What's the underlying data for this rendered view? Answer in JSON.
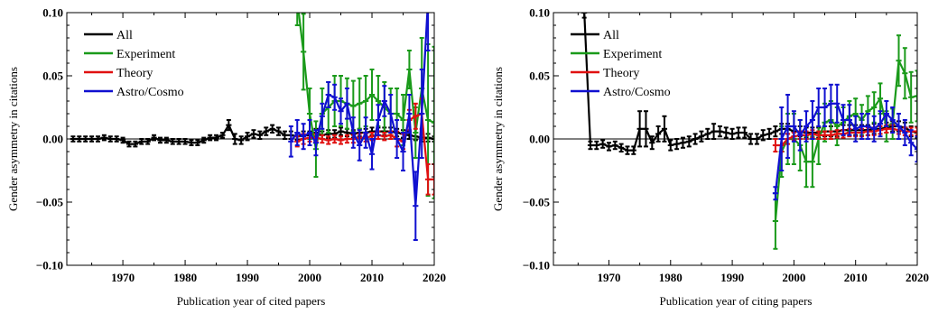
{
  "chart_data": [
    {
      "type": "line",
      "xlabel": "Publication year of cited papers",
      "ylabel": "Gender asymmetry in citations",
      "xlim": [
        1961,
        2020
      ],
      "ylim": [
        -0.1,
        0.1
      ],
      "x_ticks": [
        1970,
        1980,
        1990,
        2000,
        2010,
        2020
      ],
      "y_ticks": [
        -0.1,
        -0.05,
        0.0,
        0.05,
        0.1
      ],
      "y_tick_labels": [
        "−0.10",
        "−0.05",
        "0.00",
        "0.05",
        "0.10"
      ],
      "zero_line": true,
      "legend_position": "top-left",
      "series": [
        {
          "name": "All",
          "color": "#000000",
          "x": [
            1962,
            1963,
            1964,
            1965,
            1966,
            1967,
            1968,
            1969,
            1970,
            1971,
            1972,
            1973,
            1974,
            1975,
            1976,
            1977,
            1978,
            1979,
            1980,
            1981,
            1982,
            1983,
            1984,
            1985,
            1986,
            1987,
            1988,
            1989,
            1990,
            1991,
            1992,
            1993,
            1994,
            1995,
            1996,
            1997,
            1998,
            1999,
            2000,
            2001,
            2002,
            2003,
            2004,
            2005,
            2006,
            2007,
            2008,
            2009,
            2010,
            2011,
            2012,
            2013,
            2014,
            2015,
            2016,
            2017,
            2018,
            2019,
            2020
          ],
          "y": [
            0.0,
            0.0,
            0.0,
            0.0,
            0.0,
            0.001,
            0.0,
            0.0,
            -0.001,
            -0.004,
            -0.004,
            -0.002,
            -0.002,
            0.001,
            -0.001,
            -0.001,
            -0.002,
            -0.002,
            -0.002,
            -0.003,
            -0.003,
            -0.001,
            0.001,
            0.001,
            0.003,
            0.011,
            0.0,
            -0.001,
            0.002,
            0.004,
            0.003,
            0.006,
            0.008,
            0.006,
            0.003,
            0.003,
            0.002,
            0.003,
            0.003,
            0.005,
            0.003,
            0.004,
            0.004,
            0.006,
            0.005,
            0.004,
            0.005,
            0.005,
            0.006,
            0.006,
            0.006,
            0.006,
            0.005,
            0.004,
            0.003,
            0.002,
            0.001,
            0.001,
            0.0
          ],
          "yerr": [
            0.002,
            0.002,
            0.002,
            0.002,
            0.002,
            0.002,
            0.002,
            0.002,
            0.002,
            0.002,
            0.002,
            0.002,
            0.002,
            0.002,
            0.002,
            0.002,
            0.002,
            0.002,
            0.002,
            0.002,
            0.002,
            0.002,
            0.002,
            0.002,
            0.002,
            0.004,
            0.004,
            0.003,
            0.003,
            0.003,
            0.003,
            0.003,
            0.003,
            0.003,
            0.003,
            0.003,
            0.003,
            0.003,
            0.003,
            0.003,
            0.003,
            0.003,
            0.003,
            0.003,
            0.003,
            0.003,
            0.003,
            0.003,
            0.003,
            0.003,
            0.003,
            0.003,
            0.003,
            0.003,
            0.003,
            0.003,
            0.003,
            0.003,
            0.002
          ]
        },
        {
          "name": "Experiment",
          "color": "#1a9a1a",
          "x": [
            1998,
            1999,
            2000,
            2001,
            2002,
            2003,
            2004,
            2005,
            2006,
            2007,
            2008,
            2009,
            2010,
            2011,
            2012,
            2013,
            2014,
            2015,
            2016,
            2017,
            2018,
            2019,
            2020
          ],
          "y": [
            0.11,
            0.069,
            0.02,
            -0.008,
            0.02,
            0.025,
            0.03,
            0.03,
            0.028,
            0.026,
            0.028,
            0.03,
            0.035,
            0.03,
            0.025,
            0.02,
            0.02,
            0.015,
            0.055,
            0.005,
            0.04,
            0.015,
            0.013
          ],
          "yerr": [
            0.02,
            0.03,
            0.02,
            0.022,
            0.02,
            0.02,
            0.02,
            0.02,
            0.02,
            0.02,
            0.02,
            0.02,
            0.02,
            0.02,
            0.02,
            0.02,
            0.02,
            0.02,
            0.015,
            0.02,
            0.04,
            0.06,
            0.06
          ]
        },
        {
          "name": "Theory",
          "color": "#e01010",
          "x": [
            1998,
            1999,
            2000,
            2001,
            2002,
            2003,
            2004,
            2005,
            2006,
            2007,
            2008,
            2009,
            2010,
            2011,
            2012,
            2013,
            2014,
            2015,
            2016,
            2017,
            2018,
            2019,
            2020
          ],
          "y": [
            -0.002,
            0.0,
            0.001,
            0.001,
            0.0,
            -0.001,
            0.0,
            -0.001,
            0.0,
            0.0,
            0.001,
            0.001,
            0.002,
            0.003,
            0.002,
            0.003,
            0.0,
            -0.002,
            0.015,
            0.018,
            0.02,
            -0.032,
            -0.032
          ],
          "yerr": [
            0.004,
            0.004,
            0.003,
            0.003,
            0.003,
            0.003,
            0.003,
            0.003,
            0.003,
            0.003,
            0.003,
            0.003,
            0.003,
            0.003,
            0.003,
            0.003,
            0.006,
            0.006,
            0.008,
            0.01,
            0.012,
            0.012,
            0.012
          ]
        },
        {
          "name": "Astro/Cosmo",
          "color": "#1010d0",
          "x": [
            1997,
            1998,
            1999,
            2000,
            2001,
            2002,
            2003,
            2004,
            2005,
            2006,
            2007,
            2008,
            2009,
            2010,
            2011,
            2012,
            2013,
            2014,
            2015,
            2016,
            2017,
            2018,
            2019
          ],
          "y": [
            -0.002,
            0.005,
            0.002,
            0.005,
            -0.003,
            0.018,
            0.035,
            0.033,
            0.022,
            0.028,
            0.005,
            -0.005,
            0.005,
            -0.012,
            0.015,
            0.03,
            0.02,
            0.0,
            -0.01,
            0.02,
            -0.053,
            0.02,
            0.11
          ],
          "yerr": [
            0.012,
            0.01,
            0.01,
            0.01,
            0.01,
            0.01,
            0.01,
            0.01,
            0.01,
            0.012,
            0.012,
            0.012,
            0.012,
            0.012,
            0.012,
            0.012,
            0.015,
            0.015,
            0.015,
            0.015,
            0.027,
            0.035,
            0.04
          ]
        }
      ]
    },
    {
      "type": "line",
      "xlabel": "Publication year of citing papers",
      "ylabel": "Gender asymmetry in citations",
      "xlim": [
        1961,
        2020
      ],
      "ylim": [
        -0.1,
        0.1
      ],
      "x_ticks": [
        1970,
        1980,
        1990,
        2000,
        2010,
        2020
      ],
      "y_ticks": [
        -0.1,
        -0.05,
        0.0,
        0.05,
        0.1
      ],
      "y_tick_labels": [
        "−0.10",
        "−0.05",
        "0.00",
        "0.05",
        "0.10"
      ],
      "zero_line": true,
      "legend_position": "top-left",
      "series": [
        {
          "name": "All",
          "color": "#000000",
          "x": [
            1965,
            1966,
            1967,
            1968,
            1969,
            1970,
            1971,
            1972,
            1973,
            1974,
            1975,
            1976,
            1977,
            1978,
            1979,
            1980,
            1981,
            1982,
            1983,
            1984,
            1985,
            1986,
            1987,
            1988,
            1989,
            1990,
            1991,
            1992,
            1993,
            1994,
            1995,
            1996,
            1997,
            1998,
            1999,
            2000,
            2001,
            2002,
            2003,
            2004,
            2005,
            2006,
            2007,
            2008,
            2009,
            2010,
            2011,
            2012,
            2013,
            2014,
            2015,
            2016,
            2017,
            2018,
            2019,
            2020
          ],
          "y": [
            0.13,
            0.1,
            -0.005,
            -0.005,
            -0.004,
            -0.006,
            -0.005,
            -0.007,
            -0.009,
            -0.009,
            0.008,
            0.008,
            -0.003,
            0.004,
            0.008,
            -0.005,
            -0.004,
            -0.003,
            -0.002,
            0.0,
            0.002,
            0.004,
            0.006,
            0.006,
            0.005,
            0.004,
            0.005,
            0.005,
            0.0,
            0.0,
            0.003,
            0.004,
            0.006,
            0.008,
            0.008,
            0.006,
            0.006,
            0.005,
            0.005,
            0.005,
            0.006,
            0.006,
            0.006,
            0.007,
            0.007,
            0.007,
            0.007,
            0.007,
            0.008,
            0.008,
            0.009,
            0.01,
            0.01,
            0.009,
            0.006,
            0.005
          ],
          "yerr": [
            0.004,
            0.004,
            0.003,
            0.003,
            0.003,
            0.003,
            0.003,
            0.003,
            0.003,
            0.003,
            0.014,
            0.014,
            0.005,
            0.006,
            0.01,
            0.004,
            0.004,
            0.004,
            0.004,
            0.004,
            0.004,
            0.004,
            0.006,
            0.004,
            0.004,
            0.004,
            0.004,
            0.004,
            0.004,
            0.004,
            0.004,
            0.004,
            0.004,
            0.004,
            0.004,
            0.004,
            0.004,
            0.004,
            0.004,
            0.004,
            0.004,
            0.004,
            0.004,
            0.004,
            0.004,
            0.004,
            0.004,
            0.004,
            0.004,
            0.004,
            0.004,
            0.004,
            0.004,
            0.004,
            0.004,
            0.004
          ]
        },
        {
          "name": "Experiment",
          "color": "#1a9a1a",
          "x": [
            1997,
            1998,
            1999,
            2000,
            2001,
            2002,
            2003,
            2004,
            2005,
            2006,
            2007,
            2008,
            2009,
            2010,
            2011,
            2012,
            2013,
            2014,
            2015,
            2016,
            2017,
            2018,
            2019,
            2020
          ],
          "y": [
            -0.065,
            -0.01,
            0.0,
            0.0,
            -0.005,
            -0.018,
            -0.018,
            0.0,
            0.013,
            0.015,
            0.01,
            0.013,
            0.018,
            0.02,
            0.015,
            0.022,
            0.025,
            0.032,
            0.01,
            0.012,
            0.062,
            0.052,
            0.033,
            0.034
          ],
          "yerr": [
            0.022,
            0.02,
            0.02,
            0.02,
            0.02,
            0.02,
            0.02,
            0.02,
            0.015,
            0.015,
            0.015,
            0.012,
            0.012,
            0.012,
            0.012,
            0.012,
            0.012,
            0.012,
            0.012,
            0.012,
            0.02,
            0.02,
            0.02,
            0.02
          ]
        },
        {
          "name": "Theory",
          "color": "#e01010",
          "x": [
            1997,
            1998,
            1999,
            2000,
            2001,
            2002,
            2003,
            2004,
            2005,
            2006,
            2007,
            2008,
            2009,
            2010,
            2011,
            2012,
            2013,
            2014,
            2015,
            2016,
            2017,
            2018,
            2019,
            2020
          ],
          "y": [
            -0.005,
            -0.005,
            0.0,
            0.002,
            0.003,
            0.003,
            0.004,
            0.003,
            0.003,
            0.003,
            0.004,
            0.004,
            0.005,
            0.005,
            0.005,
            0.006,
            0.006,
            0.007,
            0.008,
            0.008,
            0.007,
            0.006,
            0.006,
            0.006
          ],
          "yerr": [
            0.005,
            0.005,
            0.004,
            0.003,
            0.003,
            0.003,
            0.003,
            0.003,
            0.003,
            0.003,
            0.003,
            0.003,
            0.003,
            0.003,
            0.003,
            0.003,
            0.003,
            0.003,
            0.003,
            0.003,
            0.003,
            0.003,
            0.003,
            0.003
          ]
        },
        {
          "name": "Astro/Cosmo",
          "color": "#1010d0",
          "x": [
            1997,
            1998,
            1999,
            2000,
            2001,
            2002,
            2003,
            2004,
            2005,
            2006,
            2007,
            2008,
            2009,
            2010,
            2011,
            2012,
            2013,
            2014,
            2015,
            2016,
            2017,
            2018,
            2019,
            2020
          ],
          "y": [
            -0.043,
            0.0,
            0.01,
            0.01,
            0.003,
            0.01,
            0.015,
            0.025,
            0.025,
            0.028,
            0.028,
            0.015,
            0.015,
            0.008,
            0.01,
            0.01,
            0.008,
            0.012,
            0.02,
            0.015,
            0.01,
            0.005,
            -0.003,
            -0.008
          ],
          "yerr": [
            0.005,
            0.025,
            0.025,
            0.012,
            0.012,
            0.012,
            0.015,
            0.015,
            0.015,
            0.015,
            0.015,
            0.012,
            0.012,
            0.01,
            0.01,
            0.01,
            0.01,
            0.01,
            0.01,
            0.01,
            0.01,
            0.01,
            0.01,
            0.01
          ]
        }
      ]
    }
  ]
}
